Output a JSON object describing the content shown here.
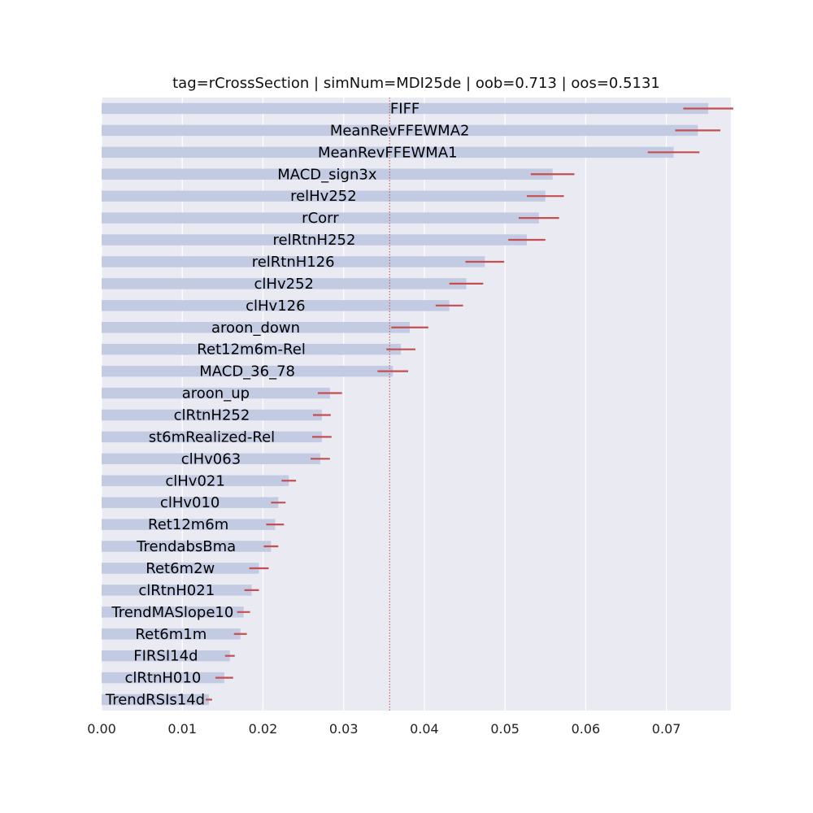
{
  "chart_data": {
    "type": "bar",
    "orientation": "horizontal",
    "title": "tag=rCrossSection | simNum=MDI25de | oob=0.713 | oos=0.5131",
    "xlabel": "",
    "ylabel": "",
    "xlim": [
      0,
      0.078
    ],
    "xticks": [
      0.0,
      0.01,
      0.02,
      0.03,
      0.04,
      0.05,
      0.06,
      0.07
    ],
    "xtick_labels": [
      "0.00",
      "0.01",
      "0.02",
      "0.03",
      "0.04",
      "0.05",
      "0.06",
      "0.07"
    ],
    "reference_line": 0.0357,
    "grid": true,
    "colors": {
      "background": "#eaeaf2",
      "bar": "#c2cbe2",
      "error_bar": "#c44e52",
      "grid": "#ffffff",
      "reference_line": "#c44e52"
    },
    "categories": [
      "FIFF",
      "MeanRevFFEWMA2",
      "MeanRevFFEWMA1",
      "MACD_sign3x",
      "relHv252",
      "rCorr",
      "relRtnH252",
      "relRtnH126",
      "clHv252",
      "clHv126",
      "aroon_down",
      "Ret12m6m-Rel",
      "MACD_36_78",
      "aroon_up",
      "clRtnH252",
      "st6mRealized-Rel",
      "clHv063",
      "clHv021",
      "clHv010",
      "Ret12m6m",
      "TrendabsBma",
      "Ret6m2w",
      "clRtnH021",
      "TrendMASlope10",
      "Ret6m1m",
      "FIRSI14d",
      "clRtnH010",
      "TrendRSIs14d"
    ],
    "values": [
      0.0752,
      0.0739,
      0.0709,
      0.0559,
      0.055,
      0.0542,
      0.0527,
      0.0475,
      0.0452,
      0.0431,
      0.0382,
      0.0371,
      0.0361,
      0.0283,
      0.0273,
      0.0273,
      0.0271,
      0.0232,
      0.0219,
      0.0215,
      0.021,
      0.0195,
      0.0186,
      0.0176,
      0.0172,
      0.0159,
      0.0152,
      0.0133
    ],
    "errors": [
      0.0031,
      0.0028,
      0.0032,
      0.0027,
      0.0023,
      0.0025,
      0.0023,
      0.0024,
      0.0021,
      0.0017,
      0.0023,
      0.0018,
      0.0019,
      0.0015,
      0.0011,
      0.0012,
      0.0012,
      0.0009,
      0.0009,
      0.0011,
      0.0009,
      0.0012,
      0.0009,
      0.0008,
      0.0008,
      0.0006,
      0.0011,
      0.0004
    ]
  }
}
